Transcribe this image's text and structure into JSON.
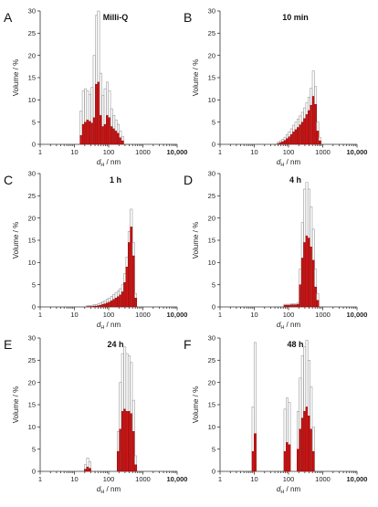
{
  "figure": {
    "y_axis_label": "Volume / %",
    "x_axis_label_main": "d",
    "x_axis_label_sub": "H",
    "x_axis_label_unit": " / nm",
    "x_tick_labels": [
      "1",
      "10",
      "100",
      "1000",
      "10,000"
    ],
    "y_tick_labels": [
      "0",
      "5",
      "10",
      "15",
      "20",
      "25",
      "30"
    ]
  },
  "chart_data": [
    {
      "type": "bar",
      "panel": "A",
      "title": "Milli-Q",
      "xscale": "log",
      "xlim": [
        1,
        10000
      ],
      "ylim": [
        0,
        30
      ],
      "x": [
        15.7,
        18.2,
        21.0,
        24.4,
        28.2,
        32.7,
        37.8,
        43.8,
        50.7,
        58.8,
        68.1,
        78.8,
        91.3,
        105.7,
        122.4,
        141.8,
        164.2,
        190.1,
        220.2,
        255.0
      ],
      "values": [
        2.0,
        4.5,
        5.0,
        5.5,
        5.2,
        4.8,
        6.0,
        13.5,
        14.0,
        6.5,
        4.0,
        4.5,
        6.5,
        6.0,
        4.0,
        3.5,
        3.0,
        2.5,
        1.5,
        0.8
      ],
      "errors": [
        5.5,
        7.5,
        7.5,
        6.5,
        6.0,
        8.0,
        14.0,
        15.5,
        16.0,
        9.5,
        7.0,
        8.0,
        7.5,
        6.0,
        4.0,
        3.0,
        2.5,
        2.0,
        1.5,
        1.0
      ]
    },
    {
      "type": "bar",
      "panel": "B",
      "title": "10 min",
      "xscale": "log",
      "xlim": [
        1,
        10000
      ],
      "ylim": [
        0,
        30
      ],
      "x": [
        50.7,
        58.8,
        68.1,
        78.8,
        91.3,
        105.7,
        122.4,
        141.8,
        164.2,
        190.1,
        220.2,
        255.0,
        295.3,
        342.0,
        396.1,
        458.7,
        531.2,
        615.1,
        712.4,
        825.0
      ],
      "values": [
        0.2,
        0.4,
        0.6,
        0.9,
        1.3,
        1.7,
        2.2,
        2.8,
        3.3,
        3.8,
        4.4,
        5.0,
        5.8,
        6.7,
        7.6,
        8.8,
        10.8,
        9.0,
        3.0,
        0.8
      ],
      "errors": [
        0.3,
        0.4,
        0.5,
        0.7,
        0.9,
        1.1,
        1.3,
        1.5,
        1.7,
        1.9,
        2.0,
        2.2,
        2.4,
        2.6,
        3.0,
        3.8,
        5.7,
        4.0,
        2.0,
        0.8
      ]
    },
    {
      "type": "bar",
      "panel": "C",
      "title": "1 h",
      "xscale": "log",
      "xlim": [
        1,
        10000
      ],
      "ylim": [
        0,
        30
      ],
      "x": [
        24.4,
        28.2,
        32.7,
        37.8,
        43.8,
        50.7,
        58.8,
        68.1,
        78.8,
        91.3,
        105.7,
        122.4,
        141.8,
        164.2,
        190.1,
        220.2,
        255.0,
        295.3,
        342.0,
        396.1,
        458.7,
        531.2,
        615.1
      ],
      "values": [
        0.1,
        0.1,
        0.1,
        0.2,
        0.2,
        0.3,
        0.4,
        0.6,
        0.7,
        0.9,
        1.1,
        1.4,
        1.7,
        2.0,
        2.3,
        2.7,
        3.4,
        5.5,
        9.0,
        14.5,
        18.0,
        11.5,
        2.0
      ],
      "errors": [
        0.2,
        0.2,
        0.2,
        0.3,
        0.3,
        0.4,
        0.5,
        0.6,
        0.7,
        0.8,
        0.9,
        1.0,
        1.1,
        1.2,
        1.3,
        1.4,
        1.6,
        2.0,
        2.2,
        2.5,
        4.0,
        3.0,
        1.0
      ]
    },
    {
      "type": "bar",
      "panel": "D",
      "title": "4 h",
      "xscale": "log",
      "xlim": [
        1,
        10000
      ],
      "ylim": [
        0,
        30
      ],
      "x": [
        78.8,
        91.3,
        105.7,
        122.4,
        141.8,
        164.2,
        190.1,
        220.2,
        255.0,
        295.3,
        342.0,
        396.1,
        458.7,
        531.2,
        615.1,
        712.4
      ],
      "values": [
        0.4,
        0.4,
        0.4,
        0.5,
        0.5,
        0.5,
        0.6,
        5.0,
        11.0,
        14.5,
        16.0,
        15.5,
        13.5,
        10.5,
        4.5,
        1.5
      ],
      "errors": [
        0.2,
        0.2,
        0.2,
        0.2,
        0.2,
        0.2,
        0.3,
        3.5,
        8.0,
        12.0,
        12.0,
        11.0,
        9.0,
        7.0,
        4.0,
        1.5
      ]
    },
    {
      "type": "bar",
      "panel": "E",
      "title": "24 h",
      "xscale": "log",
      "xlim": [
        1,
        10000
      ],
      "ylim": [
        0,
        30
      ],
      "x": [
        21.0,
        24.4,
        28.2,
        190.1,
        220.2,
        255.0,
        295.3,
        342.0,
        396.1,
        458.7,
        531.2,
        615.1
      ],
      "values": [
        0.5,
        1.0,
        0.7,
        4.5,
        9.5,
        13.5,
        14.0,
        13.5,
        13.5,
        13.0,
        9.0,
        1.5
      ],
      "errors": [
        1.0,
        2.0,
        1.5,
        4.5,
        10.5,
        13.0,
        14.0,
        13.0,
        12.5,
        11.5,
        7.0,
        2.0
      ]
    },
    {
      "type": "bar",
      "panel": "F",
      "title": "48 h",
      "xscale": "log",
      "xlim": [
        1,
        10000
      ],
      "ylim": [
        0,
        30
      ],
      "x": [
        9.2,
        10.6,
        78.8,
        91.3,
        105.7,
        190.1,
        220.2,
        255.0,
        295.3,
        342.0,
        396.1,
        458.7,
        531.2
      ],
      "values": [
        4.5,
        8.5,
        4.5,
        6.5,
        6.0,
        5.0,
        9.5,
        12.0,
        13.5,
        14.5,
        12.5,
        9.5,
        4.5
      ],
      "errors": [
        10.0,
        20.5,
        9.5,
        10.0,
        9.5,
        8.5,
        11.5,
        14.0,
        14.5,
        15.0,
        12.5,
        9.5,
        5.5
      ]
    }
  ]
}
